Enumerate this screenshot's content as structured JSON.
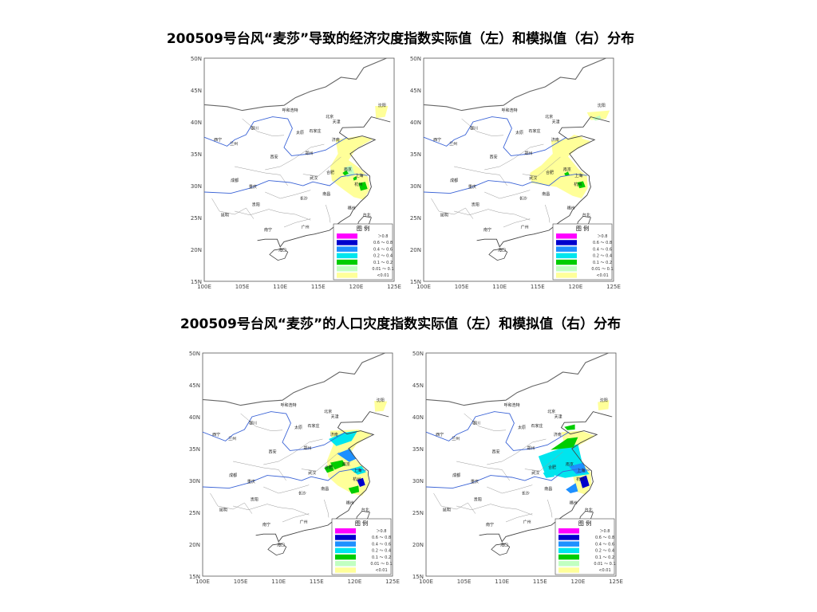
{
  "titles": {
    "economic": "200509号台风“麦莎”导致的经济灾度指数实际值（左）和模拟值（右）分布",
    "population": "200509号台风“麦莎”的人口灾度指数实际值（左）和模拟值（右）分布"
  },
  "axes": {
    "lat_labels": [
      "50N",
      "45N",
      "40N",
      "35N",
      "30N",
      "25N",
      "20N",
      "15N"
    ],
    "lon_labels": [
      "100E",
      "105E",
      "110E",
      "115E",
      "120E",
      "125E"
    ]
  },
  "cities": [
    "呼和浩特",
    "沈阳",
    "北京",
    "天津",
    "石家庄",
    "太原",
    "银川",
    "兰州",
    "西宁",
    "济南",
    "郑州",
    "西安",
    "合肥",
    "南京",
    "上海",
    "武汉",
    "成都",
    "重庆",
    "长沙",
    "杭州",
    "南昌",
    "福州",
    "贵阳",
    "昆明",
    "南宁",
    "广州",
    "海口",
    "台北"
  ],
  "legend": {
    "title": "图  例",
    "classes": [
      {
        "range": "＞0.8",
        "color": "#ff00ff"
      },
      {
        "range": "0.6 ～ 0.8",
        "color": "#0000cd"
      },
      {
        "range": "0.4 ～ 0.6",
        "color": "#1e90ff"
      },
      {
        "range": "0.2 ～ 0.4",
        "color": "#00e5ee"
      },
      {
        "range": "0.1 ～ 0.2",
        "color": "#00cd00"
      },
      {
        "range": "0.01 ～ 0.1",
        "color": "#c1ffc1"
      },
      {
        "range": "<0.01",
        "color": "#ffff99"
      }
    ]
  },
  "panels": [
    {
      "id": "economic-actual",
      "intensity": "economic-actual"
    },
    {
      "id": "economic-simulated",
      "intensity": "economic-simulated"
    },
    {
      "id": "population-actual",
      "intensity": "population-actual"
    },
    {
      "id": "population-simulated",
      "intensity": "population-simulated"
    }
  ]
}
